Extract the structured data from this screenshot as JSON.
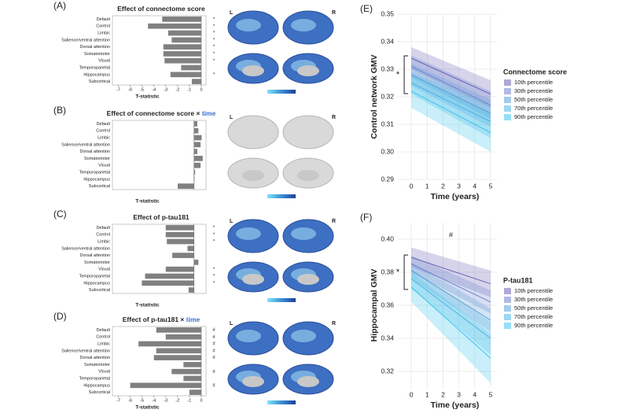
{
  "chart_data": [
    {
      "type": "hbar",
      "panel_label": "(A)",
      "title": "Effect of connectome score",
      "brain_labels": [
        "L",
        "R"
      ],
      "categories": [
        "Default",
        "Control",
        "Limbic",
        "Salience/ventral attention",
        "Dorsal attention",
        "Somatomotor",
        "Visual",
        "Temporoparietal",
        "Hippocampus",
        "Subcortical"
      ],
      "values": [
        -3.3,
        -4.5,
        -2.8,
        -2.5,
        -3.2,
        -3.2,
        -3.1,
        -1.7,
        -2.6,
        -0.8
      ],
      "markers": [
        "*",
        "*",
        "*",
        "*",
        "*",
        "*",
        "*",
        null,
        "*",
        null
      ],
      "color": "#808080",
      "xlim": [
        -7.5,
        0.4
      ],
      "xticks": [
        -7,
        -6,
        -5,
        -4,
        -3,
        -2,
        -1,
        0
      ],
      "xlabel": "T-statistic"
    },
    {
      "type": "hbar",
      "panel_label": "(B)",
      "title": "Effect of connectome score ×",
      "title_emphasis": "time",
      "brain_labels": [
        "L",
        "R"
      ],
      "categories": [
        "Default",
        "Control",
        "Limbic",
        "Salience/ventral attention",
        "Dorsal attention",
        "Somatomotor",
        "Visual",
        "Temporoparietal",
        "Hippocampus",
        "Subcortical"
      ],
      "values": [
        0.3,
        0.4,
        0.7,
        0.6,
        0.3,
        0.8,
        0.6,
        0.1,
        0.05,
        -1.5
      ],
      "color": "#808080",
      "xlim": [
        -7.5,
        1.1
      ],
      "xlabel": "T-statistic"
    },
    {
      "type": "hbar",
      "panel_label": "(C)",
      "title": "Effect of p-tau181",
      "brain_labels": [
        "L",
        "R"
      ],
      "categories": [
        "Default",
        "Control",
        "Limbic",
        "Salience/ventral attention",
        "Dorsal attention",
        "Somatomotor",
        "Visual",
        "Temporoparietal",
        "Hippocampus",
        "Subcortical"
      ],
      "values": [
        -2.6,
        -2.6,
        -2.5,
        -0.6,
        -2.0,
        0.4,
        -2.6,
        -4.5,
        -4.8,
        -0.5
      ],
      "markers": [
        "*",
        "*",
        "*",
        null,
        null,
        null,
        "*",
        "*",
        "*",
        null
      ],
      "color": "#808080",
      "xlim": [
        -7.5,
        1.1
      ],
      "xlabel": "T-statistic"
    },
    {
      "type": "hbar",
      "panel_label": "(D)",
      "title": "Effect of p-tau181 ×",
      "title_emphasis": "time",
      "brain_labels": [
        "L",
        "R"
      ],
      "categories": [
        "Default",
        "Control",
        "Limbic",
        "Salience/ventral attention",
        "Dorsal attention",
        "Somatomotor",
        "Visual",
        "Temporoparietal",
        "Hippocampus",
        "Subcortical"
      ],
      "values": [
        -3.8,
        -3.0,
        -5.3,
        -3.8,
        -4.0,
        -1.5,
        -2.5,
        -1.5,
        -6.0,
        -1.0
      ],
      "markers": [
        "#",
        "#",
        "#",
        "#",
        "#",
        null,
        "#",
        null,
        "#",
        null
      ],
      "color": "#808080",
      "xlim": [
        -7.5,
        0.4
      ],
      "xticks": [
        -7,
        -6,
        -5,
        -4,
        -3,
        -2,
        -1,
        0
      ],
      "xlabel": "T-statistic"
    },
    {
      "type": "line",
      "panel_label": "(E)",
      "ylabel": "Control network GMV",
      "xlabel": "Time (years)",
      "legend_title": "Connectome score",
      "group_effect_marker": "*",
      "x": [
        0,
        5
      ],
      "xlim": [
        -0.9,
        5.4
      ],
      "xticks": [
        0,
        1,
        2,
        3,
        4,
        5
      ],
      "ylim": [
        0.29,
        0.35
      ],
      "yticks": [
        0.29,
        {
          "value": 0.3,
          "label": "0.30"
        },
        0.31,
        0.32,
        0.33,
        0.34,
        0.35
      ],
      "grid": true,
      "series": [
        {
          "name": "10th percentile",
          "color": "#6b63b5",
          "values": [
            0.334,
            0.321
          ],
          "lower": [
            0.33,
            0.316
          ],
          "upper": [
            0.338,
            0.326
          ]
        },
        {
          "name": "30th percentile",
          "color": "#6f84d0",
          "values": [
            0.331,
            0.317
          ],
          "lower": [
            0.327,
            0.312
          ],
          "upper": [
            0.335,
            0.322
          ]
        },
        {
          "name": "50th percentile",
          "color": "#5d9fd8",
          "values": [
            0.328,
            0.314
          ],
          "lower": [
            0.324,
            0.309
          ],
          "upper": [
            0.332,
            0.319
          ]
        },
        {
          "name": "70th percentile",
          "color": "#4cb4e2",
          "values": [
            0.325,
            0.311
          ],
          "lower": [
            0.321,
            0.305
          ],
          "upper": [
            0.329,
            0.317
          ]
        },
        {
          "name": "90th percentile",
          "color": "#3cc6ee",
          "values": [
            0.322,
            0.307
          ],
          "lower": [
            0.316,
            0.3
          ],
          "upper": [
            0.328,
            0.314
          ]
        }
      ]
    },
    {
      "type": "line",
      "panel_label": "(F)",
      "ylabel": "Hippocampal GMV",
      "xlabel": "Time (years)",
      "legend_title": "P-tau181",
      "group_effect_marker": "*",
      "time_effect_marker": "#",
      "x": [
        0,
        5
      ],
      "xlim": [
        -0.9,
        5.4
      ],
      "xticks": [
        0,
        1,
        2,
        3,
        4,
        5
      ],
      "ylim": [
        0.31,
        0.41
      ],
      "yticks": [
        0.32,
        0.34,
        0.36,
        0.38,
        {
          "value": 0.4,
          "label": "0.40"
        }
      ],
      "grid": true,
      "series": [
        {
          "name": "10th percentile",
          "color": "#6b63b5",
          "values": [
            0.389,
            0.373
          ],
          "lower": [
            0.383,
            0.365
          ],
          "upper": [
            0.395,
            0.381
          ]
        },
        {
          "name": "30th percentile",
          "color": "#6f84d0",
          "values": [
            0.385,
            0.362
          ],
          "lower": [
            0.38,
            0.355
          ],
          "upper": [
            0.39,
            0.369
          ]
        },
        {
          "name": "50th percentile",
          "color": "#5d9fd8",
          "values": [
            0.381,
            0.351
          ],
          "lower": [
            0.376,
            0.344
          ],
          "upper": [
            0.386,
            0.358
          ]
        },
        {
          "name": "70th percentile",
          "color": "#4cb4e2",
          "values": [
            0.376,
            0.34
          ],
          "lower": [
            0.37,
            0.33
          ],
          "upper": [
            0.382,
            0.35
          ]
        },
        {
          "name": "90th percentile",
          "color": "#3cc6ee",
          "values": [
            0.371,
            0.328
          ],
          "lower": [
            0.362,
            0.313
          ],
          "upper": [
            0.38,
            0.343
          ]
        }
      ]
    }
  ]
}
